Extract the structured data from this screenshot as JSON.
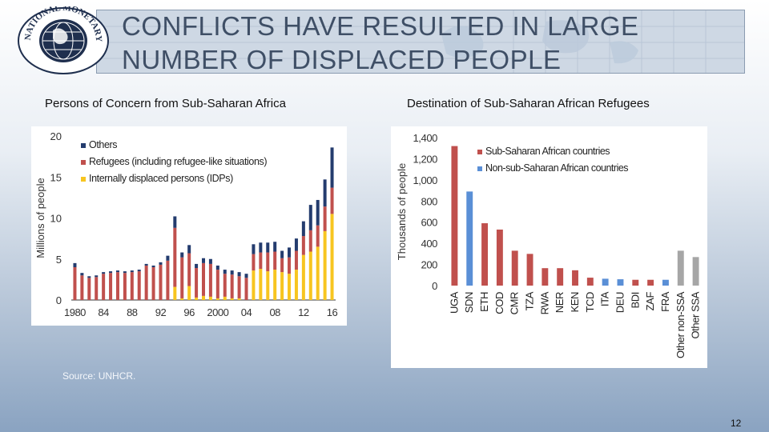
{
  "slide": {
    "title_line1": "CONFLICTS HAVE RESULTED IN LARGE",
    "title_line2": "NUMBER OF DISPLACED PEOPLE",
    "logo_text": "INTERNATIONAL MONETARY FUND",
    "source": "Source: UNHCR.",
    "page_number": "12"
  },
  "chart_data": [
    {
      "type": "bar",
      "stacked": true,
      "title": "Persons of Concern from Sub-Saharan Africa",
      "ylabel": "Millions of people",
      "xlabel": "",
      "ylim": [
        0,
        20
      ],
      "yticks": [
        "0",
        "5",
        "10",
        "15",
        "20"
      ],
      "xtick_labels": [
        "1980",
        "84",
        "88",
        "92",
        "96",
        "2000",
        "04",
        "08",
        "12",
        "16"
      ],
      "xtick_years": [
        1980,
        1984,
        1988,
        1992,
        1996,
        2000,
        2004,
        2008,
        2012,
        2016
      ],
      "years": [
        1980,
        1981,
        1982,
        1983,
        1984,
        1985,
        1986,
        1987,
        1988,
        1989,
        1990,
        1991,
        1992,
        1993,
        1994,
        1995,
        1996,
        1997,
        1998,
        1999,
        2000,
        2001,
        2002,
        2003,
        2004,
        2005,
        2006,
        2007,
        2008,
        2009,
        2010,
        2011,
        2012,
        2013,
        2014,
        2015,
        2016
      ],
      "series": [
        {
          "name": "Internally displaced persons (IDPs)",
          "color": "#f7c520",
          "values": [
            0,
            0,
            0,
            0,
            0,
            0,
            0,
            0,
            0,
            0,
            0,
            0,
            0,
            0,
            1.6,
            0.2,
            1.7,
            0.3,
            0.5,
            0.4,
            0.2,
            0.4,
            0.2,
            0.2,
            0,
            3.6,
            3.8,
            3.5,
            3.7,
            3.4,
            3.2,
            3.7,
            5.5,
            5.9,
            6.5,
            8.4,
            10.5
          ]
        },
        {
          "name": "Refugees (including refugee-like situations)",
          "color": "#c0504d",
          "values": [
            4,
            3,
            2.7,
            2.8,
            3.2,
            3.3,
            3.4,
            3.3,
            3.4,
            3.5,
            4.2,
            4.0,
            4.3,
            4.8,
            7.2,
            5.0,
            4.0,
            3.6,
            4.0,
            4.0,
            3.5,
            2.8,
            2.9,
            2.7,
            2.7,
            2.0,
            2.0,
            2.3,
            2.2,
            1.7,
            2.0,
            2.3,
            2.3,
            2.6,
            2.6,
            3.0,
            3.2
          ]
        },
        {
          "name": "Others",
          "color": "#243c6e",
          "values": [
            0.5,
            0.3,
            0.2,
            0.2,
            0.2,
            0.2,
            0.2,
            0.2,
            0.2,
            0.2,
            0.2,
            0.2,
            0.3,
            0.6,
            1.4,
            0.6,
            1.0,
            0.5,
            0.6,
            0.6,
            0.5,
            0.5,
            0.5,
            0.5,
            0.5,
            1.2,
            1.2,
            1.2,
            1.2,
            0.9,
            1.2,
            1.5,
            1.8,
            3.1,
            3.1,
            3.3,
            4.9
          ]
        }
      ]
    },
    {
      "type": "bar",
      "title": "Destination of Sub-Saharan African Refugees",
      "ylabel": "Thousands of people",
      "xlabel": "",
      "ylim": [
        0,
        1400
      ],
      "yticks": [
        "0",
        "200",
        "400",
        "600",
        "800",
        "1,000",
        "1,200",
        "1,400"
      ],
      "categories": [
        "UGA",
        "SDN",
        "ETH",
        "COD",
        "CMR",
        "TZA",
        "RWA",
        "NER",
        "KEN",
        "TCD",
        "ITA",
        "DEU",
        "BDI",
        "ZAF",
        "FRA",
        "Other non-SSA",
        "Other SSA"
      ],
      "values": [
        1320,
        890,
        590,
        530,
        330,
        300,
        165,
        165,
        145,
        75,
        65,
        60,
        55,
        55,
        55,
        330,
        270
      ],
      "groups": [
        "ssa",
        "non",
        "ssa",
        "ssa",
        "ssa",
        "ssa",
        "ssa",
        "ssa",
        "ssa",
        "ssa",
        "non",
        "non",
        "ssa",
        "ssa",
        "non",
        "other",
        "other"
      ],
      "legend": [
        {
          "name": "Sub-Saharan African countries",
          "color": "#c0504d"
        },
        {
          "name": "Non-sub-Saharan African countries",
          "color": "#5a8fd6"
        }
      ],
      "colors": {
        "ssa": "#c0504d",
        "non": "#5a8fd6",
        "other": "#a6a6a6"
      }
    }
  ]
}
